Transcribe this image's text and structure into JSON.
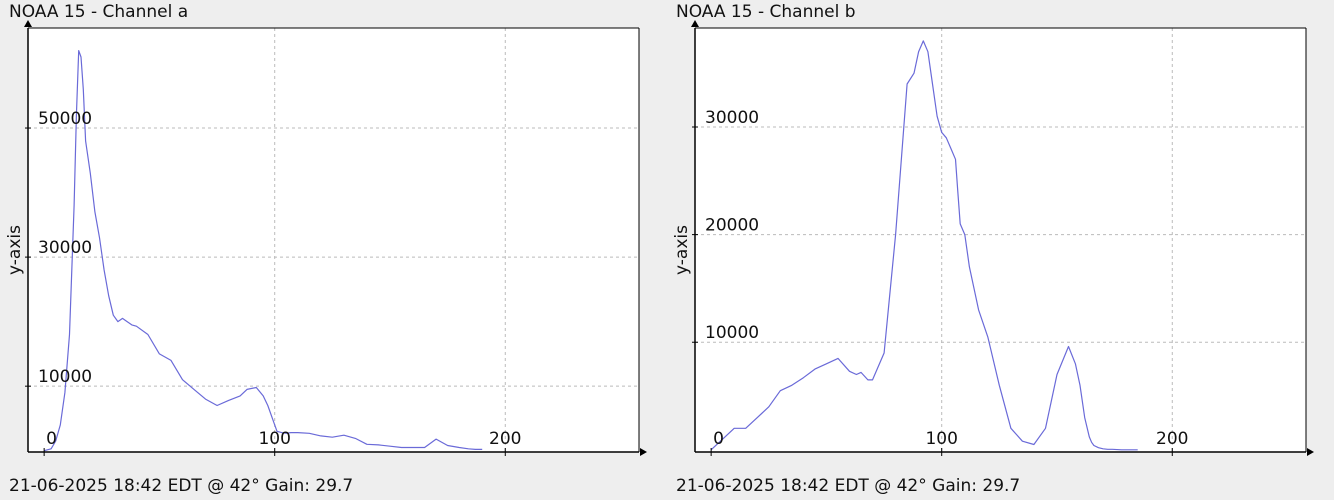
{
  "panels": [
    {
      "title": "NOAA 15 - Channel a",
      "caption": "21-06-2025 18:42 EDT @ 42° Gain: 29.7"
    },
    {
      "title": "NOAA 15 - Channel b",
      "caption": "21-06-2025 18:42 EDT @ 42° Gain: 29.7"
    }
  ],
  "colors": {
    "background": "#eeeeee",
    "plot_background": "#ffffff",
    "line": "#6a6ad8",
    "grid": "#bbbbbb",
    "axis": "#000000"
  },
  "chart_data": [
    {
      "type": "line",
      "title": "NOAA 15 - Channel a",
      "xlabel": "",
      "ylabel": "y-axis",
      "xlim": [
        -7,
        258
      ],
      "ylim": [
        -200,
        65500
      ],
      "xticks": [
        0,
        100,
        200
      ],
      "yticks": [
        10000,
        30000,
        50000
      ],
      "xgrid": [
        100,
        200
      ],
      "ygrid": [
        10000,
        30000,
        50000
      ],
      "grid": true,
      "series": [
        {
          "x": [
            0,
            3,
            5,
            7,
            9,
            11,
            13,
            14,
            15,
            16,
            17,
            18,
            20,
            22,
            24,
            26,
            28,
            30,
            32,
            34,
            36,
            38,
            40,
            45,
            50,
            55,
            60,
            65,
            70,
            75,
            80,
            85,
            88,
            92,
            95,
            97,
            99,
            101,
            103,
            105,
            107,
            110,
            115,
            120,
            125,
            130,
            135,
            140,
            145,
            150,
            155,
            160,
            165,
            170,
            175,
            180,
            184,
            187,
            190
          ],
          "y": [
            0,
            300,
            1500,
            4000,
            9000,
            18000,
            38000,
            52000,
            62000,
            61000,
            56000,
            48000,
            43000,
            37000,
            33000,
            28000,
            24000,
            21000,
            20000,
            20500,
            20000,
            19500,
            19300,
            18000,
            15000,
            14000,
            11000,
            9500,
            8000,
            7000,
            7800,
            8500,
            9500,
            9800,
            8500,
            7000,
            5000,
            3000,
            2800,
            2700,
            2800,
            2800,
            2700,
            2300,
            2100,
            2400,
            1900,
            1000,
            900,
            700,
            500,
            500,
            500,
            1800,
            800,
            500,
            300,
            200,
            200
          ]
        }
      ]
    },
    {
      "type": "line",
      "title": "NOAA 15 - Channel b",
      "xlabel": "",
      "ylabel": "y-axis",
      "xlim": [
        -7,
        258
      ],
      "ylim": [
        -200,
        39200
      ],
      "xticks": [
        0,
        100,
        200
      ],
      "yticks": [
        10000,
        20000,
        30000
      ],
      "xgrid": [
        100,
        200
      ],
      "ygrid": [
        10000,
        20000,
        30000
      ],
      "grid": true,
      "series": [
        {
          "x": [
            0,
            5,
            10,
            15,
            20,
            25,
            30,
            35,
            40,
            45,
            50,
            55,
            60,
            63,
            65,
            68,
            70,
            75,
            80,
            85,
            88,
            90,
            92,
            94,
            96,
            98,
            100,
            102,
            104,
            106,
            107,
            108,
            110,
            112,
            114,
            116,
            120,
            125,
            130,
            135,
            140,
            145,
            150,
            155,
            158,
            160,
            162,
            164,
            165,
            166,
            168,
            170,
            172,
            174,
            178,
            182,
            185
          ],
          "y": [
            0,
            1000,
            2000,
            2000,
            3000,
            4000,
            5500,
            6000,
            6700,
            7500,
            8000,
            8500,
            7300,
            7000,
            7200,
            6500,
            6500,
            9000,
            20000,
            34000,
            35000,
            37000,
            38000,
            37000,
            34000,
            31000,
            29500,
            29000,
            28000,
            27000,
            24000,
            21000,
            20000,
            17000,
            15000,
            13000,
            10500,
            6000,
            2000,
            800,
            500,
            2000,
            7000,
            9600,
            8000,
            6000,
            3000,
            1200,
            700,
            400,
            200,
            100,
            50,
            50,
            0,
            0,
            0
          ]
        }
      ]
    }
  ]
}
